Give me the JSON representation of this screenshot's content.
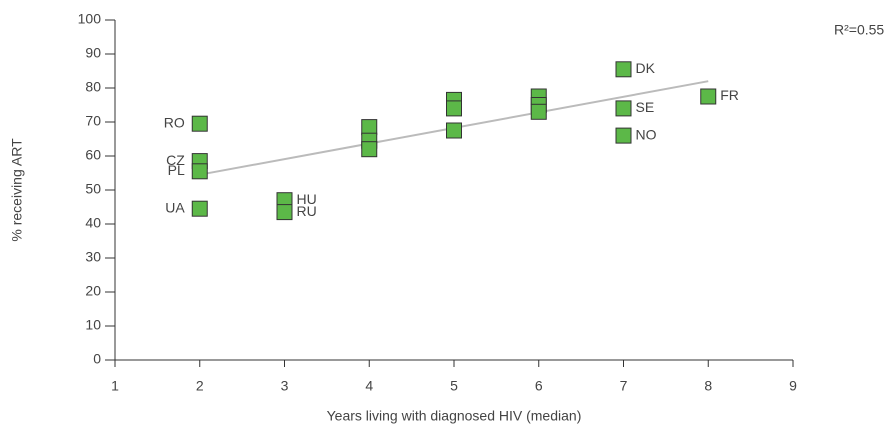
{
  "chart_data": {
    "type": "scatter",
    "x_label": "Years living with diagnosed HIV (median)",
    "y_label": "% receiving ART",
    "annotation": "R²=0.55",
    "x": [
      2,
      2,
      2,
      2,
      3,
      3,
      4,
      4,
      4,
      5,
      5,
      5,
      6,
      6,
      6,
      7,
      7,
      7,
      8
    ],
    "values": [
      69.5,
      58.5,
      55.5,
      44.5,
      47,
      43.5,
      68.5,
      64.5,
      62,
      76.5,
      74,
      67.5,
      77.5,
      75,
      73,
      85.5,
      74,
      66,
      77.5
    ],
    "point_labels": [
      "RO",
      "CZ",
      "PL",
      "UA",
      "HU",
      "RU",
      null,
      null,
      null,
      null,
      null,
      null,
      null,
      null,
      null,
      "DK",
      "SE",
      "NO",
      "FR"
    ],
    "color": "#5cb848",
    "trendline": {
      "x": [
        2,
        8
      ],
      "values": [
        54.5,
        82
      ],
      "color": "#bbbbbb"
    },
    "xlim": [
      1,
      9
    ],
    "xticks": [
      1,
      2,
      3,
      4,
      5,
      6,
      7,
      8,
      9
    ],
    "ylim": [
      0,
      100
    ],
    "yticks": [
      0,
      10,
      20,
      30,
      40,
      50,
      60,
      70,
      80,
      90,
      100
    ]
  }
}
